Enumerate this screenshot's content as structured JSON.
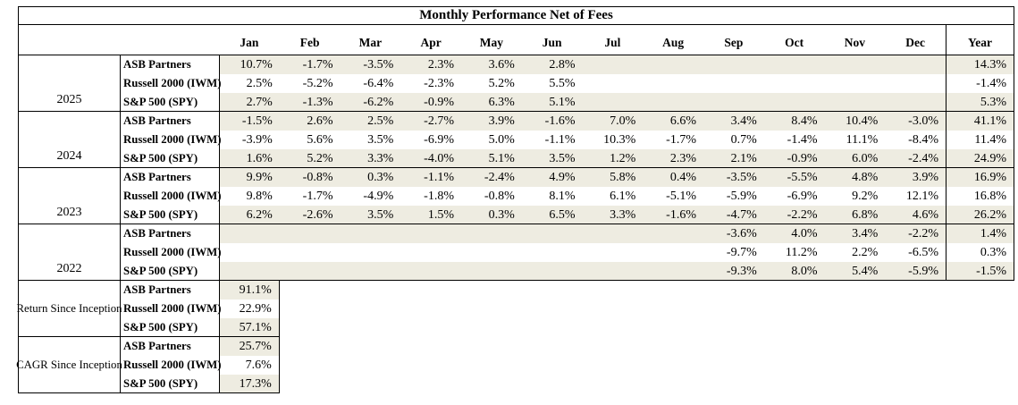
{
  "colors": {
    "shaded_row_background": "#EEECE1",
    "border": "#000000",
    "page_background": "#FFFFFF",
    "text": "#000000"
  },
  "chart_data": {
    "type": "table",
    "title": "Monthly Performance Net of Fees",
    "month_columns": [
      "Jan",
      "Feb",
      "Mar",
      "Apr",
      "May",
      "Jun",
      "Jul",
      "Aug",
      "Sep",
      "Oct",
      "Nov",
      "Dec"
    ],
    "year_column": "Year",
    "series_names": [
      "ASB Partners",
      "Russell 2000 (IWM)",
      "S&P 500 (SPY)"
    ],
    "value_unit": "percent, one decimal place",
    "groups": [
      {
        "label": "2025",
        "kind": "monthly",
        "rows": [
          {
            "series": "ASB Partners",
            "values": [
              10.7,
              -1.7,
              -3.5,
              2.3,
              3.6,
              2.8,
              null,
              null,
              null,
              null,
              null,
              null
            ],
            "year_total": 14.3
          },
          {
            "series": "Russell 2000 (IWM)",
            "values": [
              2.5,
              -5.2,
              -6.4,
              -2.3,
              5.2,
              5.5,
              null,
              null,
              null,
              null,
              null,
              null
            ],
            "year_total": -1.4
          },
          {
            "series": "S&P 500 (SPY)",
            "values": [
              2.7,
              -1.3,
              -6.2,
              -0.9,
              6.3,
              5.1,
              null,
              null,
              null,
              null,
              null,
              null
            ],
            "year_total": 5.3
          }
        ]
      },
      {
        "label": "2024",
        "kind": "monthly",
        "rows": [
          {
            "series": "ASB Partners",
            "values": [
              -1.5,
              2.6,
              2.5,
              -2.7,
              3.9,
              -1.6,
              7.0,
              6.6,
              3.4,
              8.4,
              10.4,
              -3.0
            ],
            "year_total": 41.1
          },
          {
            "series": "Russell 2000 (IWM)",
            "values": [
              -3.9,
              5.6,
              3.5,
              -6.9,
              5.0,
              -1.1,
              10.3,
              -1.7,
              0.7,
              -1.4,
              11.1,
              -8.4
            ],
            "year_total": 11.4
          },
          {
            "series": "S&P 500 (SPY)",
            "values": [
              1.6,
              5.2,
              3.3,
              -4.0,
              5.1,
              3.5,
              1.2,
              2.3,
              2.1,
              -0.9,
              6.0,
              -2.4
            ],
            "year_total": 24.9
          }
        ]
      },
      {
        "label": "2023",
        "kind": "monthly",
        "rows": [
          {
            "series": "ASB Partners",
            "values": [
              9.9,
              -0.8,
              0.3,
              -1.1,
              -2.4,
              4.9,
              5.8,
              0.4,
              -3.5,
              -5.5,
              4.8,
              3.9
            ],
            "year_total": 16.9
          },
          {
            "series": "Russell 2000 (IWM)",
            "values": [
              9.8,
              -1.7,
              -4.9,
              -1.8,
              -0.8,
              8.1,
              6.1,
              -5.1,
              -5.9,
              -6.9,
              9.2,
              12.1
            ],
            "year_total": 16.8
          },
          {
            "series": "S&P 500 (SPY)",
            "values": [
              6.2,
              -2.6,
              3.5,
              1.5,
              0.3,
              6.5,
              3.3,
              -1.6,
              -4.7,
              -2.2,
              6.8,
              4.6
            ],
            "year_total": 26.2
          }
        ]
      },
      {
        "label": "2022",
        "kind": "monthly",
        "rows": [
          {
            "series": "ASB Partners",
            "values": [
              null,
              null,
              null,
              null,
              null,
              null,
              null,
              null,
              -3.6,
              4.0,
              3.4,
              -2.2
            ],
            "year_total": 1.4
          },
          {
            "series": "Russell 2000 (IWM)",
            "values": [
              null,
              null,
              null,
              null,
              null,
              null,
              null,
              null,
              -9.7,
              11.2,
              2.2,
              -6.5
            ],
            "year_total": 0.3
          },
          {
            "series": "S&P 500 (SPY)",
            "values": [
              null,
              null,
              null,
              null,
              null,
              null,
              null,
              null,
              -9.3,
              8.0,
              5.4,
              -5.9
            ],
            "year_total": -1.5
          }
        ]
      },
      {
        "label": "Return Since Inception",
        "kind": "summary",
        "rows": [
          {
            "series": "ASB Partners",
            "value": 91.1
          },
          {
            "series": "Russell 2000 (IWM)",
            "value": 22.9
          },
          {
            "series": "S&P 500 (SPY)",
            "value": 57.1
          }
        ]
      },
      {
        "label": "CAGR Since Inception",
        "kind": "summary",
        "rows": [
          {
            "series": "ASB Partners",
            "value": 25.7
          },
          {
            "series": "Russell 2000 (IWM)",
            "value": 7.6
          },
          {
            "series": "S&P 500 (SPY)",
            "value": 17.3
          }
        ]
      }
    ]
  }
}
